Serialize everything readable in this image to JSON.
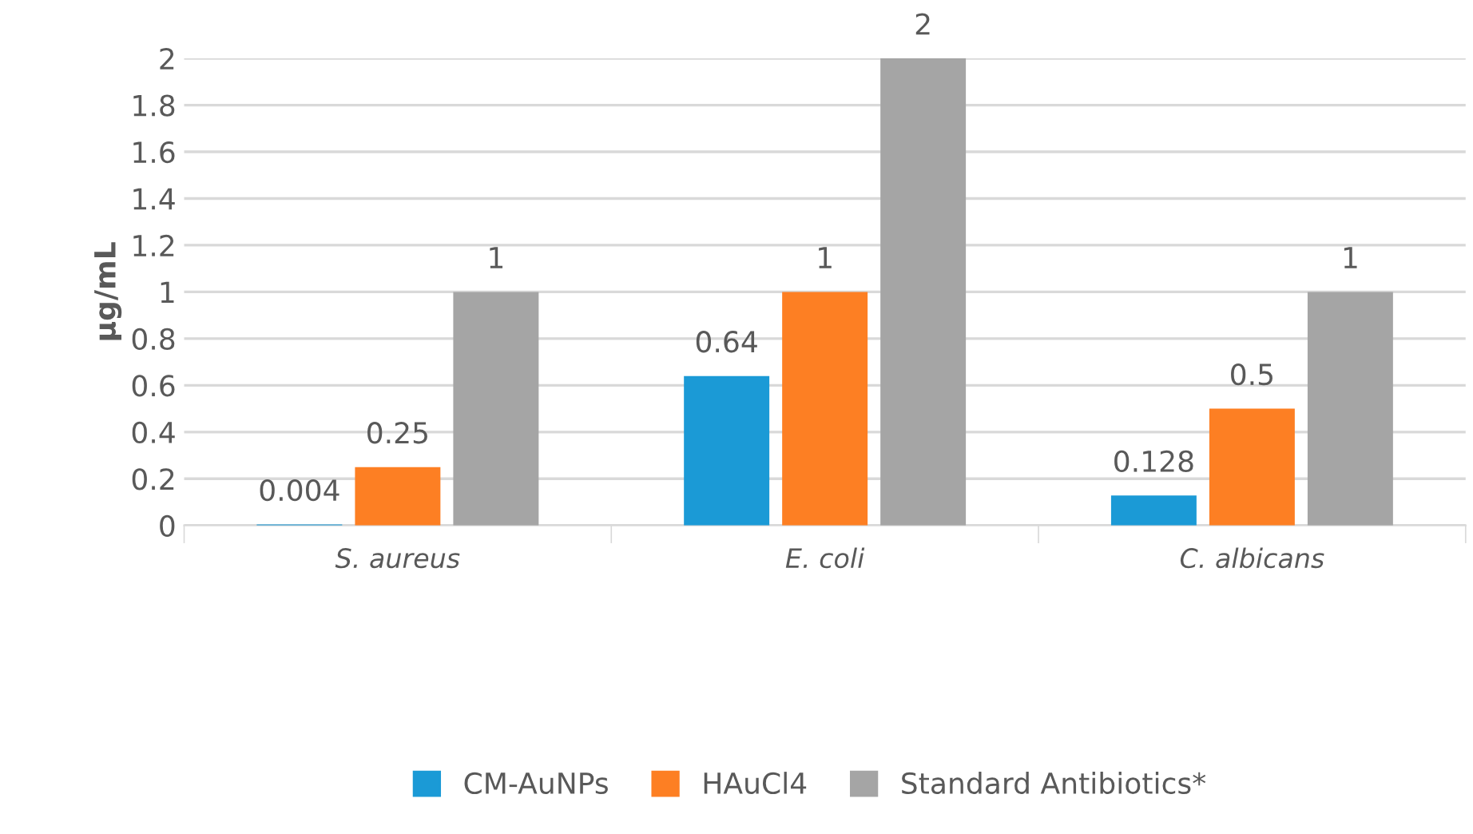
{
  "chart_data": {
    "type": "bar",
    "ylabel": "µg/mL",
    "categories": [
      "S. aureus",
      "E. coli",
      "C. albicans"
    ],
    "series": [
      {
        "name": "CM-AuNPs",
        "color": "#1b9ad6",
        "values": [
          0.004,
          0.64,
          0.128
        ]
      },
      {
        "name": "HAuCl4",
        "color": "#fd7f23",
        "values": [
          0.25,
          1,
          0.5
        ]
      },
      {
        "name": "Standard Antibiotics*",
        "color": "#a5a5a5",
        "values": [
          1,
          2,
          1
        ]
      }
    ],
    "ylim": [
      0,
      2
    ],
    "yticks": [
      0,
      0.2,
      0.4,
      0.6,
      0.8,
      1,
      1.2,
      1.4,
      1.6,
      1.8,
      2
    ],
    "grid": "y",
    "legend": "bottom",
    "data_labels": true
  }
}
